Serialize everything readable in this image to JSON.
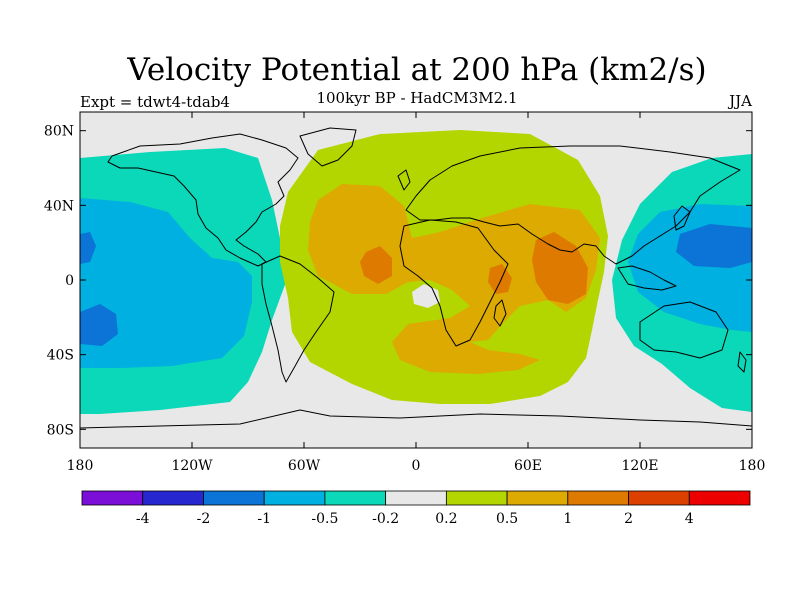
{
  "title": "Velocity Potential at 200 hPa (km2/s)",
  "subtitle": "100kyr BP - HadCM3M2.1",
  "left_label": "Expt = tdwt4-tdab4",
  "right_label": "JJA",
  "map": {
    "projection": "cylindrical equidistant",
    "lon_range": [
      -180,
      180
    ],
    "lat_range": [
      -90,
      90
    ],
    "lat_ticks": [
      {
        "value": 80,
        "label": "80N"
      },
      {
        "value": 40,
        "label": "40N"
      },
      {
        "value": 0,
        "label": "0"
      },
      {
        "value": -40,
        "label": "40S"
      },
      {
        "value": -80,
        "label": "80S"
      }
    ],
    "lon_ticks": [
      {
        "value": -180,
        "label": "180"
      },
      {
        "value": -120,
        "label": "120W"
      },
      {
        "value": -60,
        "label": "60W"
      },
      {
        "value": 0,
        "label": "0"
      },
      {
        "value": 60,
        "label": "60E"
      },
      {
        "value": 120,
        "label": "120E"
      },
      {
        "value": 180,
        "label": "180"
      }
    ]
  },
  "colorbar": {
    "colors": [
      "#7b0fd8",
      "#2727cf",
      "#0b74d6",
      "#00b0e0",
      "#0ad8b8",
      "#e8e8e8",
      "#b4d600",
      "#dcaa00",
      "#de7a00",
      "#dc4000",
      "#ec0000"
    ],
    "labels": [
      "-4",
      "-2",
      "-1",
      "-0.5",
      "-0.2",
      "0.2",
      "0.5",
      "1",
      "2",
      "4"
    ]
  }
}
